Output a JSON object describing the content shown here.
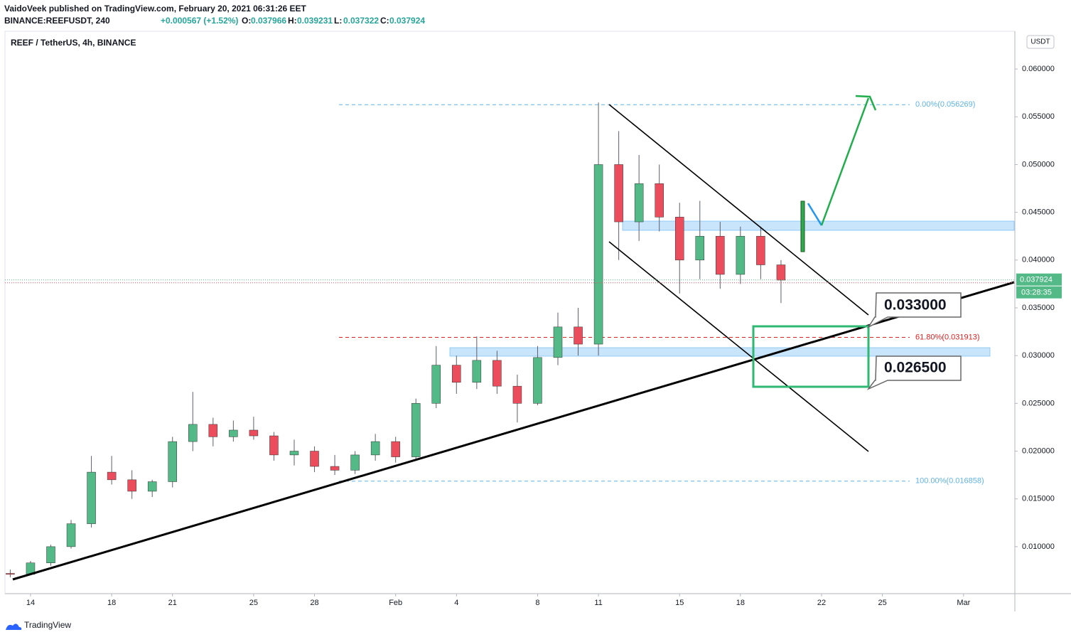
{
  "header": {
    "publisher": "VaidoVeek published on TradingView.com, February 20, 2021 06:31:26 EET",
    "symbol": "BINANCE:REEFUSDT, 240",
    "change": "+0.000567 (+1.52%)",
    "ohlc": [
      {
        "key": "O:",
        "value": "0.037966"
      },
      {
        "key": "H:",
        "value": "0.039231"
      },
      {
        "key": "L:",
        "value": "0.037322"
      },
      {
        "key": "C:",
        "value": "0.037924"
      }
    ]
  },
  "footer": {
    "brand": "TradingView"
  },
  "chart_data": {
    "type": "candlestick",
    "title": "REEF / TetherUS, 4h, BINANCE",
    "y_unit": "USDT",
    "up_color": "#53b987",
    "down_color": "#eb4d5c",
    "x": [
      13,
      14,
      15,
      16,
      17,
      18,
      19,
      20,
      21,
      22,
      23,
      24,
      25,
      26,
      27,
      28,
      29,
      30,
      31,
      32,
      33,
      34,
      35,
      36,
      37,
      38,
      39,
      40,
      41,
      42,
      43,
      44,
      45,
      46,
      47,
      48,
      49,
      50,
      51
    ],
    "open": [
      0.0072,
      0.0071,
      0.0083,
      0.01,
      0.0124,
      0.0178,
      0.017,
      0.0158,
      0.0168,
      0.021,
      0.0228,
      0.0215,
      0.0222,
      0.0216,
      0.0196,
      0.02,
      0.0184,
      0.018,
      0.0196,
      0.021,
      0.0194,
      0.025,
      0.029,
      0.0272,
      0.0295,
      0.0268,
      0.025,
      0.0298,
      0.033,
      0.0312,
      0.05,
      0.044,
      0.048,
      0.0445,
      0.04,
      0.0425,
      0.0385,
      0.0425,
      0.0395
    ],
    "high": [
      0.0076,
      0.0085,
      0.0102,
      0.0128,
      0.0195,
      0.0195,
      0.018,
      0.017,
      0.0215,
      0.0262,
      0.0235,
      0.0232,
      0.0236,
      0.022,
      0.0212,
      0.0205,
      0.0196,
      0.02,
      0.0218,
      0.0215,
      0.0255,
      0.031,
      0.03,
      0.032,
      0.0305,
      0.028,
      0.031,
      0.0345,
      0.035,
      0.0565,
      0.0535,
      0.051,
      0.05,
      0.046,
      0.0462,
      0.044,
      0.0435,
      0.0435,
      0.04
    ],
    "low": [
      0.0068,
      0.007,
      0.008,
      0.0098,
      0.012,
      0.0165,
      0.015,
      0.0152,
      0.0162,
      0.02,
      0.0205,
      0.021,
      0.0212,
      0.019,
      0.0185,
      0.0178,
      0.0175,
      0.0176,
      0.019,
      0.0188,
      0.0192,
      0.0245,
      0.026,
      0.0265,
      0.026,
      0.023,
      0.0248,
      0.029,
      0.03,
      0.03,
      0.04,
      0.042,
      0.043,
      0.0365,
      0.038,
      0.037,
      0.0375,
      0.038,
      0.0355
    ],
    "close": [
      0.0071,
      0.0083,
      0.01,
      0.0124,
      0.0178,
      0.017,
      0.0158,
      0.0168,
      0.021,
      0.0228,
      0.0215,
      0.0222,
      0.0216,
      0.0196,
      0.02,
      0.0184,
      0.018,
      0.0196,
      0.021,
      0.0194,
      0.025,
      0.029,
      0.0272,
      0.0295,
      0.0268,
      0.025,
      0.0298,
      0.033,
      0.0312,
      0.05,
      0.044,
      0.048,
      0.0445,
      0.04,
      0.0425,
      0.0385,
      0.0425,
      0.0395,
      0.0379
    ],
    "xlim": [
      12.74,
      62.53
    ],
    "xticks": [
      14,
      18,
      21,
      25,
      28,
      {
        "value": 32,
        "label": "Feb"
      },
      {
        "value": 35,
        "label": "4"
      },
      {
        "value": 39,
        "label": "8"
      },
      {
        "value": 42,
        "label": "11"
      },
      {
        "value": 46,
        "label": "15"
      },
      {
        "value": 49,
        "label": "18"
      },
      {
        "value": 53,
        "label": "22"
      },
      {
        "value": 56,
        "label": "25"
      },
      {
        "value": 60,
        "label": "Mar"
      }
    ],
    "ylim": [
      0.00508,
      0.06395
    ],
    "yticks": [
      {
        "value": 0.01,
        "label": "0.010000"
      },
      {
        "value": 0.015,
        "label": "0.015000"
      },
      {
        "value": 0.02,
        "label": "0.020000"
      },
      {
        "value": 0.025,
        "label": "0.025000"
      },
      {
        "value": 0.03,
        "label": "0.030000"
      },
      {
        "value": 0.035,
        "label": "0.035000"
      },
      {
        "value": 0.04,
        "label": "0.040000"
      },
      {
        "value": 0.045,
        "label": "0.045000"
      },
      {
        "value": 0.05,
        "label": "0.050000"
      },
      {
        "value": 0.055,
        "label": "0.055000"
      },
      {
        "value": 0.06,
        "label": "0.060000"
      }
    ],
    "last_price": {
      "value": 0.037924,
      "label": "0.037924"
    },
    "countdown": "03:28:35",
    "fib_levels": [
      {
        "value": 0.056269,
        "label": "0.00%(0.056269)",
        "color": "#5fb3e8"
      },
      {
        "value": 0.031913,
        "label": "61.80%(0.031913)",
        "color": "#e02020"
      },
      {
        "value": 0.016858,
        "label": "100.00%(0.016858)",
        "color": "#5fb3e8"
      }
    ],
    "callouts": [
      "0.033000",
      "0.026500"
    ]
  }
}
